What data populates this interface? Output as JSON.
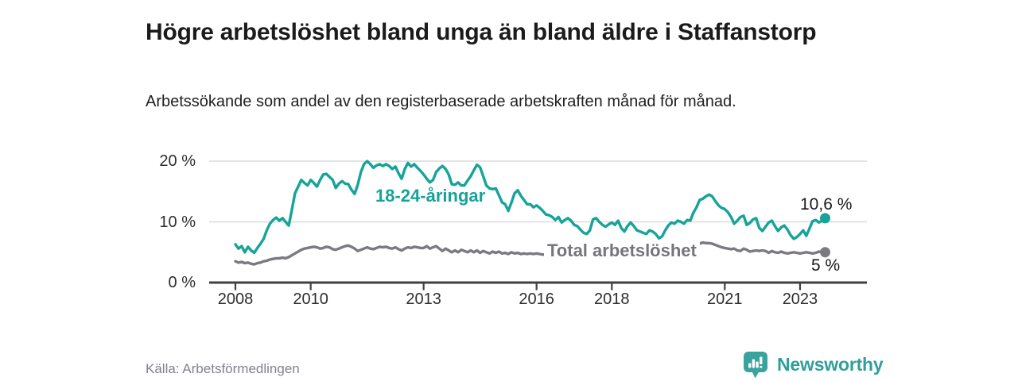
{
  "title": "Högre arbetslöshet bland unga än bland äldre i Staffanstorp",
  "subtitle": "Arbetssökande som andel av den registerbaserade arbetskraften månad för månad.",
  "source": "Källa: Arbetsförmedlingen",
  "logo": {
    "text": "Newsworthy"
  },
  "colors": {
    "young": "#17a398",
    "total": "#7a7a80",
    "grid": "#dcdcdc",
    "axis": "#404040",
    "title_text": "#1b1b1b",
    "muted_text": "#82828c",
    "logo_teal": "#3aa39e"
  },
  "chart_data": {
    "type": "line",
    "title": "Högre arbetslöshet bland unga än bland äldre i Staffanstorp",
    "subtitle": "Arbetssökande som andel av den registerbaserade arbetskraften månad för månad.",
    "x_unit": "month",
    "x_start_year": 2008,
    "x_end": "2023-09",
    "x_ticks": [
      2008,
      2010,
      2013,
      2016,
      2018,
      2021,
      2023
    ],
    "x_tick_labels": [
      "2008",
      "2010",
      "2013",
      "2016",
      "2018",
      "2021",
      "2023"
    ],
    "y_ticks": [
      0,
      10,
      20
    ],
    "y_tick_labels": [
      "0 %",
      "10 %",
      "20 %"
    ],
    "ylim": [
      0,
      22
    ],
    "grid": true,
    "legend_position": "inline-labels",
    "series": [
      {
        "name": "18-24-åringar",
        "color": "#17a398",
        "end_label": "10,6 %",
        "end_value": 10.6,
        "values": [
          6.3,
          5.6,
          6.0,
          5.0,
          5.9,
          5.3,
          4.9,
          5.7,
          6.4,
          7.2,
          8.6,
          9.7,
          10.3,
          10.7,
          10.2,
          10.6,
          10.0,
          9.4,
          12.0,
          14.7,
          15.8,
          16.9,
          16.4,
          16.0,
          16.9,
          16.4,
          15.8,
          16.9,
          17.8,
          17.9,
          17.4,
          16.9,
          15.6,
          16.3,
          16.7,
          16.3,
          16.2,
          15.3,
          14.6,
          16.1,
          18.2,
          19.5,
          20.0,
          19.5,
          18.9,
          19.3,
          19.5,
          19.2,
          19.5,
          19.2,
          18.7,
          19.1,
          18.0,
          17.1,
          18.7,
          19.7,
          19.1,
          19.5,
          18.9,
          18.4,
          17.8,
          17.1,
          16.5,
          16.9,
          18.2,
          18.8,
          19.2,
          18.7,
          17.8,
          16.2,
          16.1,
          16.5,
          16.0,
          16.0,
          16.8,
          17.5,
          18.5,
          19.4,
          19.0,
          17.5,
          16.0,
          15.5,
          15.4,
          15.5,
          14.4,
          13.2,
          12.9,
          11.8,
          13.2,
          14.7,
          15.2,
          14.3,
          13.6,
          12.9,
          12.9,
          12.4,
          12.7,
          12.3,
          11.8,
          11.2,
          11.1,
          10.8,
          10.3,
          10.8,
          9.9,
          10.3,
          10.6,
          10.2,
          9.5,
          9.3,
          8.7,
          8.2,
          8.0,
          8.6,
          10.4,
          10.6,
          10.0,
          9.5,
          9.2,
          9.6,
          9.9,
          9.5,
          10.2,
          9.0,
          8.4,
          9.3,
          9.9,
          9.3,
          8.6,
          8.4,
          8.2,
          8.0,
          8.6,
          8.4,
          8.0,
          7.3,
          7.6,
          8.6,
          9.4,
          9.9,
          9.7,
          10.2,
          10.0,
          9.7,
          10.3,
          10.2,
          11.5,
          12.4,
          13.6,
          13.8,
          14.2,
          14.5,
          14.2,
          13.4,
          12.7,
          12.3,
          12.1,
          11.6,
          10.8,
          9.7,
          10.2,
          10.8,
          11.0,
          9.5,
          9.8,
          10.4,
          10.6,
          9.0,
          8.5,
          9.2,
          9.9,
          10.2,
          9.3,
          8.5,
          9.1,
          9.4,
          8.7,
          7.8,
          7.2,
          7.5,
          8.0,
          8.6,
          7.7,
          8.9,
          10.1,
          10.3,
          9.9,
          10.2,
          10.6
        ]
      },
      {
        "name": "Total arbetslöshet",
        "color": "#7a7a80",
        "end_label": "5 %",
        "end_value": 5.0,
        "values": [
          3.5,
          3.3,
          3.4,
          3.2,
          3.3,
          3.1,
          3.0,
          3.2,
          3.3,
          3.5,
          3.6,
          3.8,
          3.9,
          4.0,
          4.0,
          4.1,
          4.0,
          4.2,
          4.5,
          4.8,
          5.1,
          5.4,
          5.6,
          5.7,
          5.8,
          5.9,
          5.8,
          5.6,
          5.7,
          5.9,
          5.8,
          5.5,
          5.4,
          5.6,
          5.8,
          6.0,
          6.1,
          5.9,
          5.6,
          5.2,
          5.4,
          5.6,
          5.8,
          5.6,
          5.5,
          5.7,
          5.9,
          5.8,
          5.9,
          5.7,
          5.6,
          5.8,
          5.5,
          5.3,
          5.6,
          5.8,
          5.7,
          5.9,
          5.8,
          5.7,
          5.7,
          6.0,
          5.6,
          5.8,
          6.0,
          5.6,
          5.2,
          5.6,
          5.3,
          5.0,
          5.3,
          5.0,
          5.4,
          5.2,
          5.0,
          5.3,
          5.0,
          5.3,
          4.9,
          5.2,
          5.0,
          4.8,
          5.1,
          4.9,
          5.1,
          4.8,
          4.9,
          4.7,
          5.0,
          4.8,
          4.9,
          4.7,
          4.8,
          4.7,
          4.8,
          4.7,
          4.8,
          4.7,
          4.6,
          4.7,
          4.6,
          4.5,
          4.6,
          4.5,
          4.4,
          4.5,
          4.4,
          4.3,
          4.4,
          4.3,
          4.2,
          4.3,
          4.2,
          4.1,
          4.2,
          4.1,
          4.0,
          4.1,
          4.0,
          4.1,
          4.0,
          4.1,
          4.0,
          3.9,
          4.0,
          3.9,
          4.0,
          3.9,
          4.0,
          4.1,
          4.0,
          4.1,
          4.0,
          4.1,
          4.2,
          4.1,
          4.2,
          4.3,
          4.2,
          4.3,
          4.4,
          4.3,
          4.4,
          4.5,
          4.6,
          4.7,
          5.2,
          6.0,
          6.4,
          6.6,
          6.5,
          6.5,
          6.4,
          6.2,
          6.0,
          5.8,
          5.7,
          5.6,
          5.5,
          5.6,
          5.3,
          5.2,
          5.6,
          5.4,
          5.1,
          5.2,
          5.3,
          5.2,
          5.3,
          5.2,
          4.9,
          5.2,
          5.0,
          4.9,
          5.1,
          4.9,
          4.8,
          4.9,
          5.0,
          4.9,
          4.8,
          4.9,
          5.0,
          4.9,
          4.8,
          4.9,
          5.1,
          5.0,
          5.0
        ]
      }
    ]
  }
}
